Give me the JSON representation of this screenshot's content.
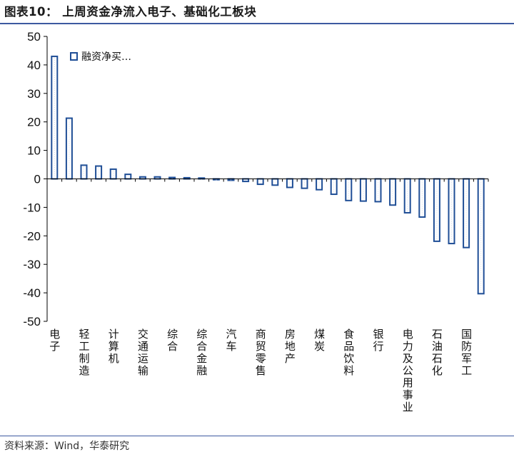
{
  "title": "图表10： 上周资金净流入电子、基础化工板块",
  "source": "资料来源：Wind，华泰研究",
  "colors": {
    "bar_edge": "#1f4e96",
    "bar_fill": "#ffffff",
    "rule": "#3d5aa0"
  },
  "chart_data": {
    "type": "bar",
    "title": "",
    "xlabel": "",
    "ylabel": "",
    "ylim": [
      -50,
      50
    ],
    "yticks": [
      50,
      40,
      30,
      20,
      10,
      0,
      -10,
      -20,
      -30,
      -40,
      -50
    ],
    "grid": false,
    "legend_position": "top-left",
    "series": [
      {
        "name": "融资净买…",
        "values": [
          43.0,
          21.3,
          4.8,
          4.5,
          3.4,
          1.6,
          0.7,
          0.7,
          0.5,
          0.4,
          0.3,
          -0.3,
          -0.5,
          -0.9,
          -1.9,
          -2.2,
          -3.0,
          -3.3,
          -3.8,
          -5.4,
          -7.6,
          -7.8,
          -8.0,
          -9.2,
          -11.9,
          -13.4,
          -21.9,
          -22.7,
          -24.1,
          -40.3
        ]
      }
    ],
    "categories": [
      "电子",
      "",
      "轻工制造",
      "",
      "计算机",
      "",
      "交通运输",
      "",
      "综合",
      "",
      "综合金融",
      "",
      "汽车",
      "",
      "商贸零售",
      "",
      "房地产",
      "",
      "煤炭",
      "",
      "食品饮料",
      "",
      "银行",
      "",
      "电力及公用事业",
      "",
      "石油石化",
      "",
      "国防军工",
      ""
    ]
  }
}
